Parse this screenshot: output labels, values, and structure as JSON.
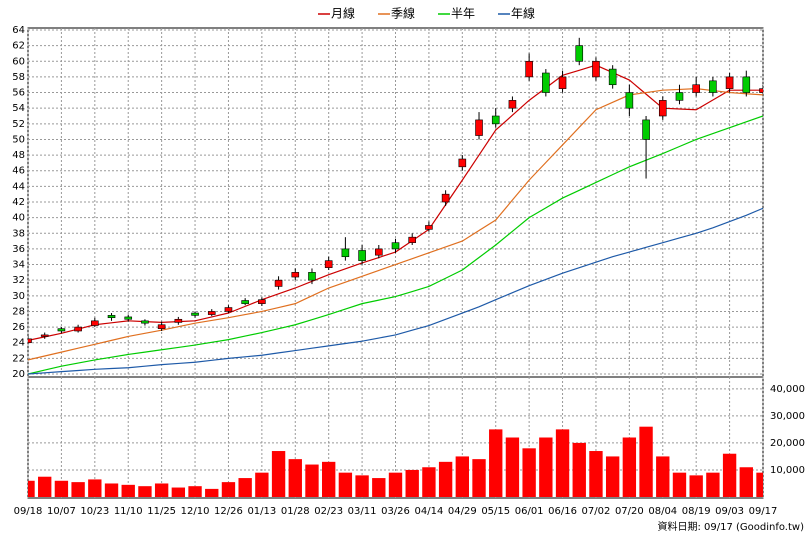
{
  "chart_data": {
    "type": "candlestick",
    "legend_position": "top",
    "grid": true,
    "categories": [
      "09/18",
      null,
      "10/07",
      null,
      "10/23",
      null,
      "11/10",
      null,
      "11/25",
      null,
      "12/10",
      null,
      "12/26",
      null,
      "01/13",
      null,
      "01/28",
      null,
      "02/23",
      null,
      "03/11",
      null,
      "03/26",
      null,
      "04/14",
      null,
      "04/29",
      null,
      "05/15",
      null,
      "06/01",
      null,
      "06/16",
      null,
      "07/02",
      null,
      "07/20",
      null,
      "08/04",
      null,
      "08/19",
      null,
      "09/03",
      null,
      "09/17"
    ],
    "open": [
      24,
      24.8,
      25.8,
      25.5,
      26.2,
      27.5,
      27.3,
      26.8,
      25.8,
      26.6,
      27.8,
      27.6,
      28,
      29.4,
      29,
      31.2,
      32.4,
      33,
      33.6,
      36,
      35.8,
      35.2,
      36.8,
      36.8,
      38.5,
      42,
      46.5,
      50.5,
      53,
      54,
      58,
      58.5,
      56.5,
      62,
      58,
      59,
      56,
      52.5,
      53,
      56,
      56,
      57.5,
      56.5,
      58,
      56
    ],
    "high": [
      25,
      25.3,
      26,
      26.3,
      27.2,
      27.8,
      27.6,
      27,
      26.7,
      27.3,
      28,
      28.3,
      28.8,
      29.7,
      29.8,
      32.5,
      33.5,
      33.5,
      35,
      37.5,
      36.5,
      36.5,
      37.3,
      38,
      39.5,
      43.5,
      48,
      53.5,
      54,
      55.5,
      61,
      59,
      58.8,
      63,
      60.5,
      59.5,
      57,
      53,
      55.5,
      57,
      58,
      58,
      58.5,
      58.8,
      57
    ],
    "low": [
      23.8,
      24.5,
      25.2,
      25.3,
      26,
      26.8,
      26.7,
      26.2,
      25.5,
      26.3,
      27.2,
      27.4,
      27.8,
      28.8,
      28.7,
      30.8,
      32,
      31.5,
      33.3,
      34.5,
      34,
      34.8,
      35.5,
      36.5,
      38.2,
      41.5,
      46,
      50,
      51.5,
      53.5,
      57.5,
      55.5,
      56,
      59.5,
      57.5,
      56.5,
      53,
      45,
      52.5,
      54.5,
      55.5,
      55.5,
      56,
      55.5,
      55.8
    ],
    "close": [
      24.5,
      25,
      25.5,
      26,
      26.8,
      27.2,
      27,
      26.5,
      26.3,
      27,
      27.5,
      28,
      28.5,
      29,
      29.5,
      32,
      33,
      32,
      34.5,
      35,
      34.5,
      36,
      36,
      37.5,
      39,
      43,
      47.5,
      52.5,
      52,
      55,
      60,
      56,
      58,
      60,
      60,
      57,
      54,
      50,
      55,
      55,
      57,
      56,
      58,
      56,
      56.5
    ],
    "up_color": "#ff0000",
    "down_color": "#00cc00",
    "series": [
      {
        "name": "月線",
        "color": "#cc0000",
        "values": [
          24.3,
          24.75,
          25.2,
          25.75,
          26.3,
          26.55,
          26.8,
          26.7,
          26.6,
          26.7,
          26.8,
          27.3,
          27.8,
          28.65,
          29.5,
          30.25,
          31,
          31.85,
          32.7,
          33.45,
          34.2,
          34.9,
          35.6,
          37.05,
          38.5,
          41.65,
          44.8,
          48,
          51.2,
          53.1,
          55,
          56.6,
          58.2,
          58.85,
          59.5,
          58.55,
          57.6,
          55.8,
          54,
          53.9,
          53.8,
          55.05,
          56.3,
          56.3,
          56.3
        ]
      },
      {
        "name": "季線",
        "color": "#e07020",
        "values": [
          21.8,
          22.3,
          22.8,
          23.3,
          23.8,
          24.3,
          24.8,
          25.2,
          25.6,
          26.05,
          26.5,
          26.85,
          27.2,
          27.6,
          28,
          28.5,
          29,
          30,
          31,
          31.75,
          32.5,
          33.25,
          34,
          34.75,
          35.5,
          36.25,
          37,
          38.35,
          39.7,
          42.25,
          44.8,
          47.05,
          49.3,
          51.55,
          53.8,
          54.75,
          55.7,
          56,
          56.3,
          56.4,
          56.5,
          56.25,
          56,
          55.85,
          55.7
        ]
      },
      {
        "name": "半年",
        "color": "#00cc00",
        "values": [
          20,
          20.5,
          21,
          21.4,
          21.8,
          22.15,
          22.5,
          22.8,
          23.1,
          23.4,
          23.7,
          24.05,
          24.4,
          24.85,
          25.3,
          25.8,
          26.3,
          26.95,
          27.6,
          28.3,
          29,
          29.45,
          29.9,
          30.55,
          31.2,
          32.25,
          33.3,
          34.9,
          36.5,
          38.25,
          40,
          41.25,
          42.5,
          43.5,
          44.5,
          45.5,
          46.5,
          47.35,
          48.2,
          49.1,
          50,
          50.75,
          51.5,
          52.25,
          53
        ]
      },
      {
        "name": "年線",
        "color": "#1e5aa8",
        "values": [
          20,
          20.15,
          20.3,
          20.45,
          20.6,
          20.7,
          20.8,
          21,
          21.2,
          21.35,
          21.5,
          21.75,
          22,
          22.2,
          22.4,
          22.7,
          23,
          23.3,
          23.6,
          23.9,
          24.2,
          24.6,
          25,
          25.6,
          26.2,
          27,
          27.8,
          28.6,
          29.5,
          30.4,
          31.3,
          32.1,
          32.9,
          33.6,
          34.3,
          35,
          35.6,
          36.2,
          36.8,
          37.4,
          38,
          38.7,
          39.5,
          40.3,
          41.2
        ]
      }
    ],
    "ylim": [
      20,
      64
    ],
    "yticks": [
      20,
      22,
      24,
      26,
      28,
      30,
      32,
      34,
      36,
      38,
      40,
      42,
      44,
      46,
      48,
      50,
      52,
      54,
      56,
      58,
      60,
      62,
      64
    ],
    "volume": {
      "color": "#ff0000",
      "values": [
        6000,
        7500,
        6000,
        5500,
        6500,
        5000,
        4500,
        4000,
        5000,
        3500,
        4000,
        3000,
        5500,
        7000,
        9000,
        17000,
        14000,
        12000,
        13000,
        9000,
        8000,
        7000,
        9000,
        10000,
        11000,
        13000,
        15000,
        14000,
        25000,
        22000,
        18000,
        22000,
        25000,
        20000,
        17000,
        15000,
        22000,
        26000,
        15000,
        9000,
        8000,
        9000,
        16000,
        11000,
        9000
      ],
      "ylim": [
        0,
        44000
      ],
      "yticks": [
        {
          "value": 10000,
          "label": "10,000"
        },
        {
          "value": 20000,
          "label": "20,000"
        },
        {
          "value": 30000,
          "label": "30,000"
        },
        {
          "value": 40000,
          "label": "40,000"
        }
      ]
    }
  },
  "source_note": "資料日期: 09/17 (Goodinfo.tw)"
}
